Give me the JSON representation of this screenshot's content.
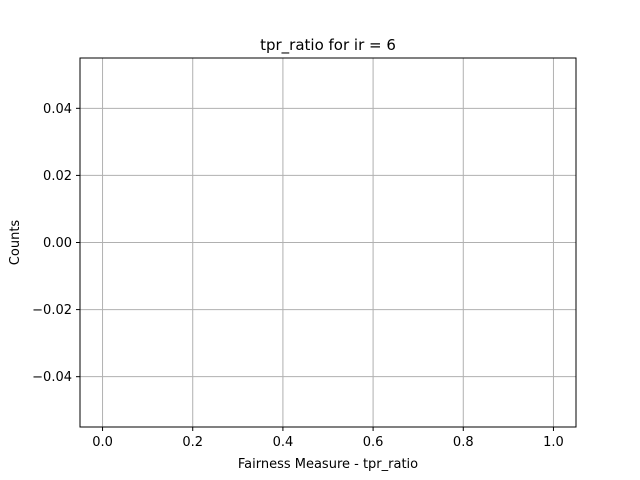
{
  "chart_data": {
    "type": "bar",
    "title": "tpr_ratio for ir = 6",
    "xlabel": "Fairness Measure - tpr_ratio",
    "ylabel": "Counts",
    "xlim": [
      -0.05,
      1.05
    ],
    "ylim": [
      -0.055,
      0.055
    ],
    "x_ticks": [
      0.0,
      0.2,
      0.4,
      0.6,
      0.8,
      1.0
    ],
    "x_tick_labels": [
      "0.0",
      "0.2",
      "0.4",
      "0.6",
      "0.8",
      "1.0"
    ],
    "y_ticks": [
      -0.04,
      -0.02,
      0.0,
      0.02,
      0.04
    ],
    "y_tick_labels": [
      "−0.04",
      "−0.02",
      "0.00",
      "0.02",
      "0.04"
    ],
    "grid": true,
    "legend": "none",
    "series": [],
    "colors": {
      "grid": "#b0b0b0",
      "axis": "#000000",
      "background": "#ffffff"
    }
  }
}
